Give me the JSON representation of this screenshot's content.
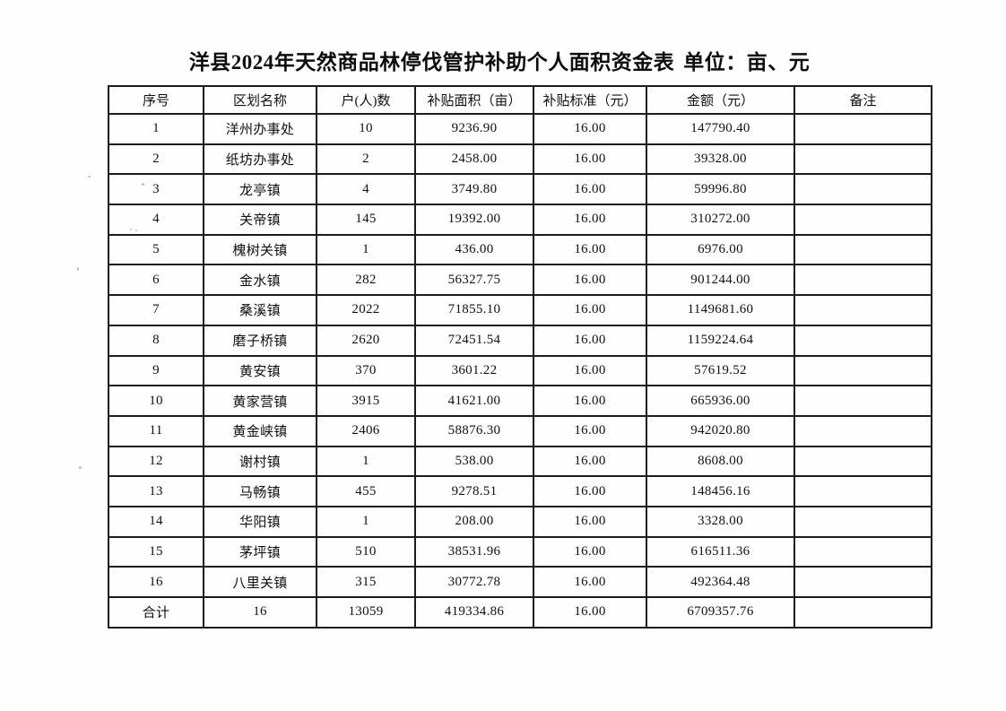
{
  "page": {
    "title": "洋县2024年天然商品林停伐管护补助个人面积资金表",
    "unit_label": "单位：亩、元"
  },
  "table": {
    "headers": [
      "序号",
      "区划名称",
      "户(人)数",
      "补贴面积（亩）",
      "补贴标准（元）",
      "金额（元）",
      "备注"
    ],
    "rows": [
      [
        "1",
        "洋州办事处",
        "10",
        "9236.90",
        "16.00",
        "147790.40",
        ""
      ],
      [
        "2",
        "纸坊办事处",
        "2",
        "2458.00",
        "16.00",
        "39328.00",
        ""
      ],
      [
        "3",
        "龙亭镇",
        "4",
        "3749.80",
        "16.00",
        "59996.80",
        ""
      ],
      [
        "4",
        "关帝镇",
        "145",
        "19392.00",
        "16.00",
        "310272.00",
        ""
      ],
      [
        "5",
        "槐树关镇",
        "1",
        "436.00",
        "16.00",
        "6976.00",
        ""
      ],
      [
        "6",
        "金水镇",
        "282",
        "56327.75",
        "16.00",
        "901244.00",
        ""
      ],
      [
        "7",
        "桑溪镇",
        "2022",
        "71855.10",
        "16.00",
        "1149681.60",
        ""
      ],
      [
        "8",
        "磨子桥镇",
        "2620",
        "72451.54",
        "16.00",
        "1159224.64",
        ""
      ],
      [
        "9",
        "黄安镇",
        "370",
        "3601.22",
        "16.00",
        "57619.52",
        ""
      ],
      [
        "10",
        "黄家营镇",
        "3915",
        "41621.00",
        "16.00",
        "665936.00",
        ""
      ],
      [
        "11",
        "黄金峡镇",
        "2406",
        "58876.30",
        "16.00",
        "942020.80",
        ""
      ],
      [
        "12",
        "谢村镇",
        "1",
        "538.00",
        "16.00",
        "8608.00",
        ""
      ],
      [
        "13",
        "马畅镇",
        "455",
        "9278.51",
        "16.00",
        "148456.16",
        ""
      ],
      [
        "14",
        "华阳镇",
        "1",
        "208.00",
        "16.00",
        "3328.00",
        ""
      ],
      [
        "15",
        "茅坪镇",
        "510",
        "38531.96",
        "16.00",
        "616511.36",
        ""
      ],
      [
        "16",
        "八里关镇",
        "315",
        "30772.78",
        "16.00",
        "492364.48",
        ""
      ]
    ],
    "total_row": [
      "合计",
      "16",
      "13059",
      "419334.86",
      "16.00",
      "6709357.76",
      ""
    ]
  }
}
